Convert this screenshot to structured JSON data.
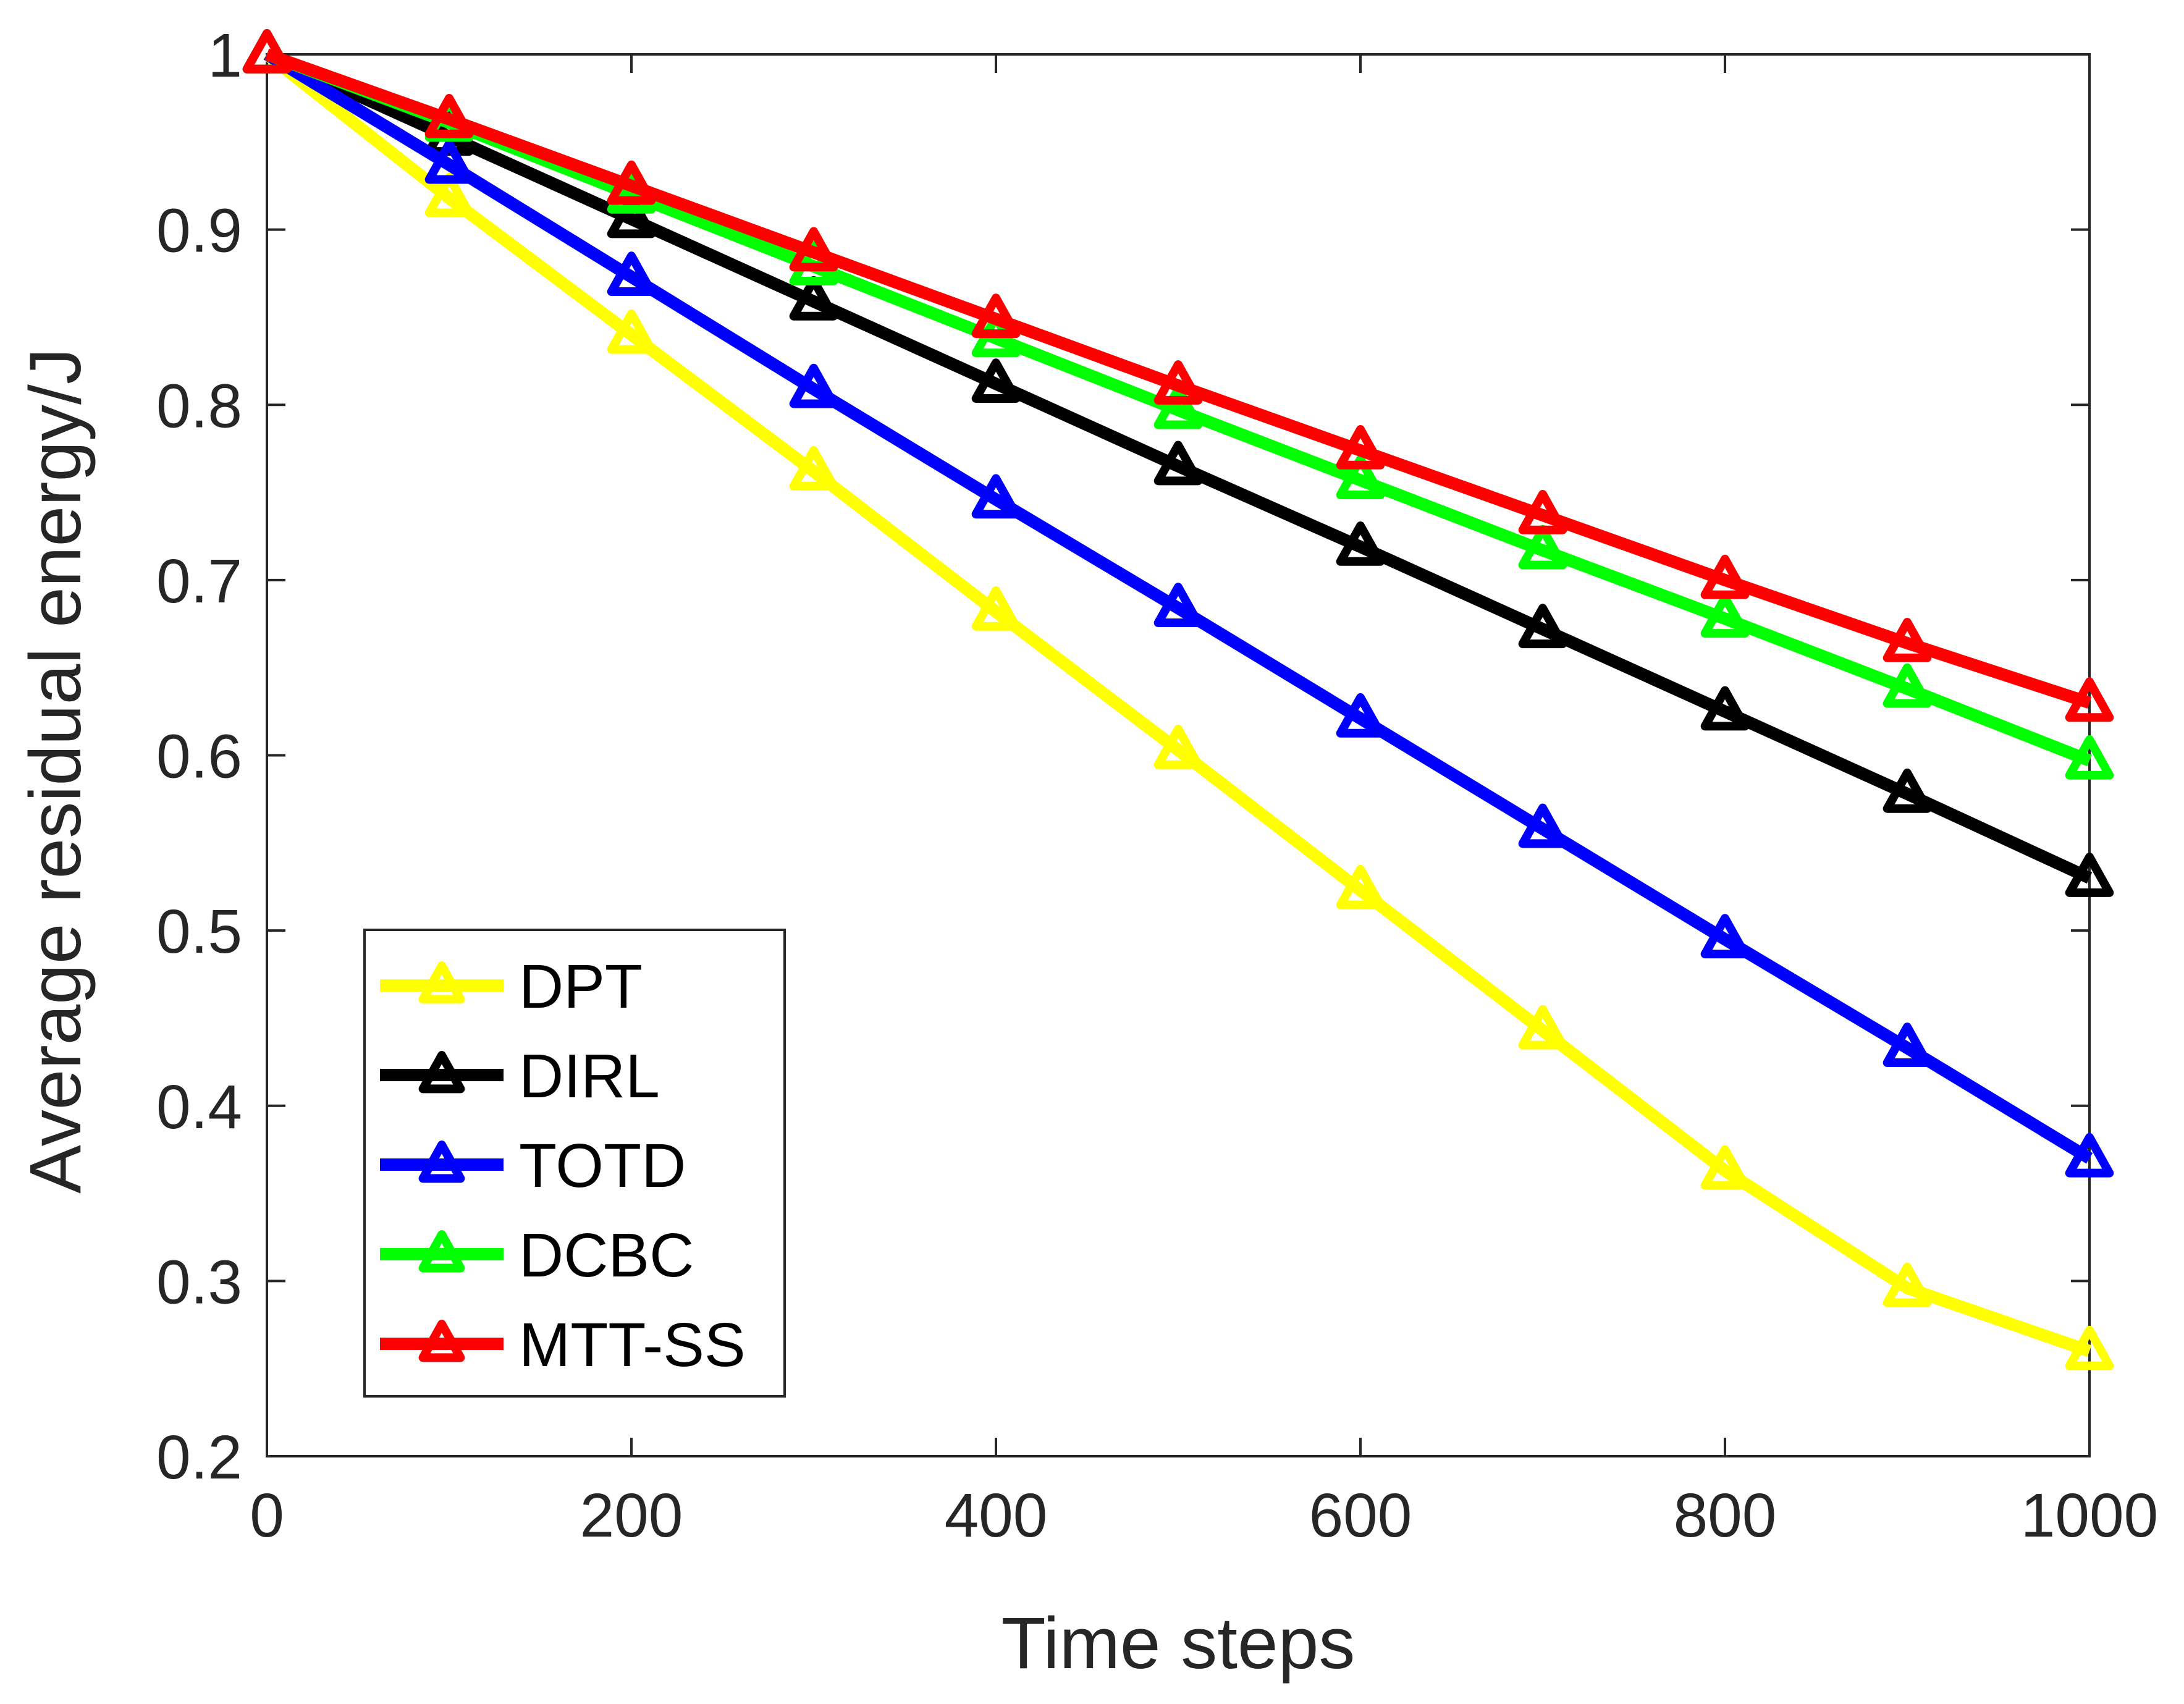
{
  "chart_data": {
    "type": "line",
    "title": "",
    "xlabel": "Time steps",
    "ylabel": "Average residual energy/J",
    "xlim": [
      0,
      1000
    ],
    "ylim": [
      0.2,
      1
    ],
    "xticks": [
      0,
      200,
      400,
      600,
      800,
      1000
    ],
    "yticks": [
      0.2,
      0.3,
      0.4,
      0.5,
      0.6,
      0.7,
      0.8,
      0.9,
      1
    ],
    "xtick_labels": [
      "0",
      "200",
      "400",
      "600",
      "800",
      "1000"
    ],
    "ytick_labels": [
      "0.2",
      "0.3",
      "0.4",
      "0.5",
      "0.6",
      "0.7",
      "0.8",
      "0.9",
      "1"
    ],
    "x": [
      0,
      100,
      200,
      300,
      400,
      500,
      600,
      700,
      800,
      900,
      1000
    ],
    "legend_position": "bottom-left",
    "marker": "triangle",
    "series": [
      {
        "name": "DPT",
        "color": "#ffff00",
        "values": [
          1.0,
          0.918,
          0.84,
          0.762,
          0.682,
          0.603,
          0.523,
          0.443,
          0.363,
          0.296,
          0.26
        ]
      },
      {
        "name": "DIRL",
        "color": "#000000",
        "values": [
          1.0,
          0.953,
          0.906,
          0.859,
          0.812,
          0.765,
          0.719,
          0.672,
          0.625,
          0.578,
          0.53
        ]
      },
      {
        "name": "TOTD",
        "color": "#0000ff",
        "values": [
          1.0,
          0.937,
          0.873,
          0.809,
          0.746,
          0.684,
          0.621,
          0.558,
          0.495,
          0.433,
          0.37
        ]
      },
      {
        "name": "DCBC",
        "color": "#00ff00",
        "values": [
          1.0,
          0.961,
          0.92,
          0.879,
          0.838,
          0.797,
          0.757,
          0.717,
          0.678,
          0.638,
          0.597
        ]
      },
      {
        "name": "MTT-SS",
        "color": "#ff0000",
        "values": [
          1.0,
          0.963,
          0.925,
          0.887,
          0.849,
          0.811,
          0.774,
          0.737,
          0.7,
          0.664,
          0.63
        ]
      }
    ]
  }
}
